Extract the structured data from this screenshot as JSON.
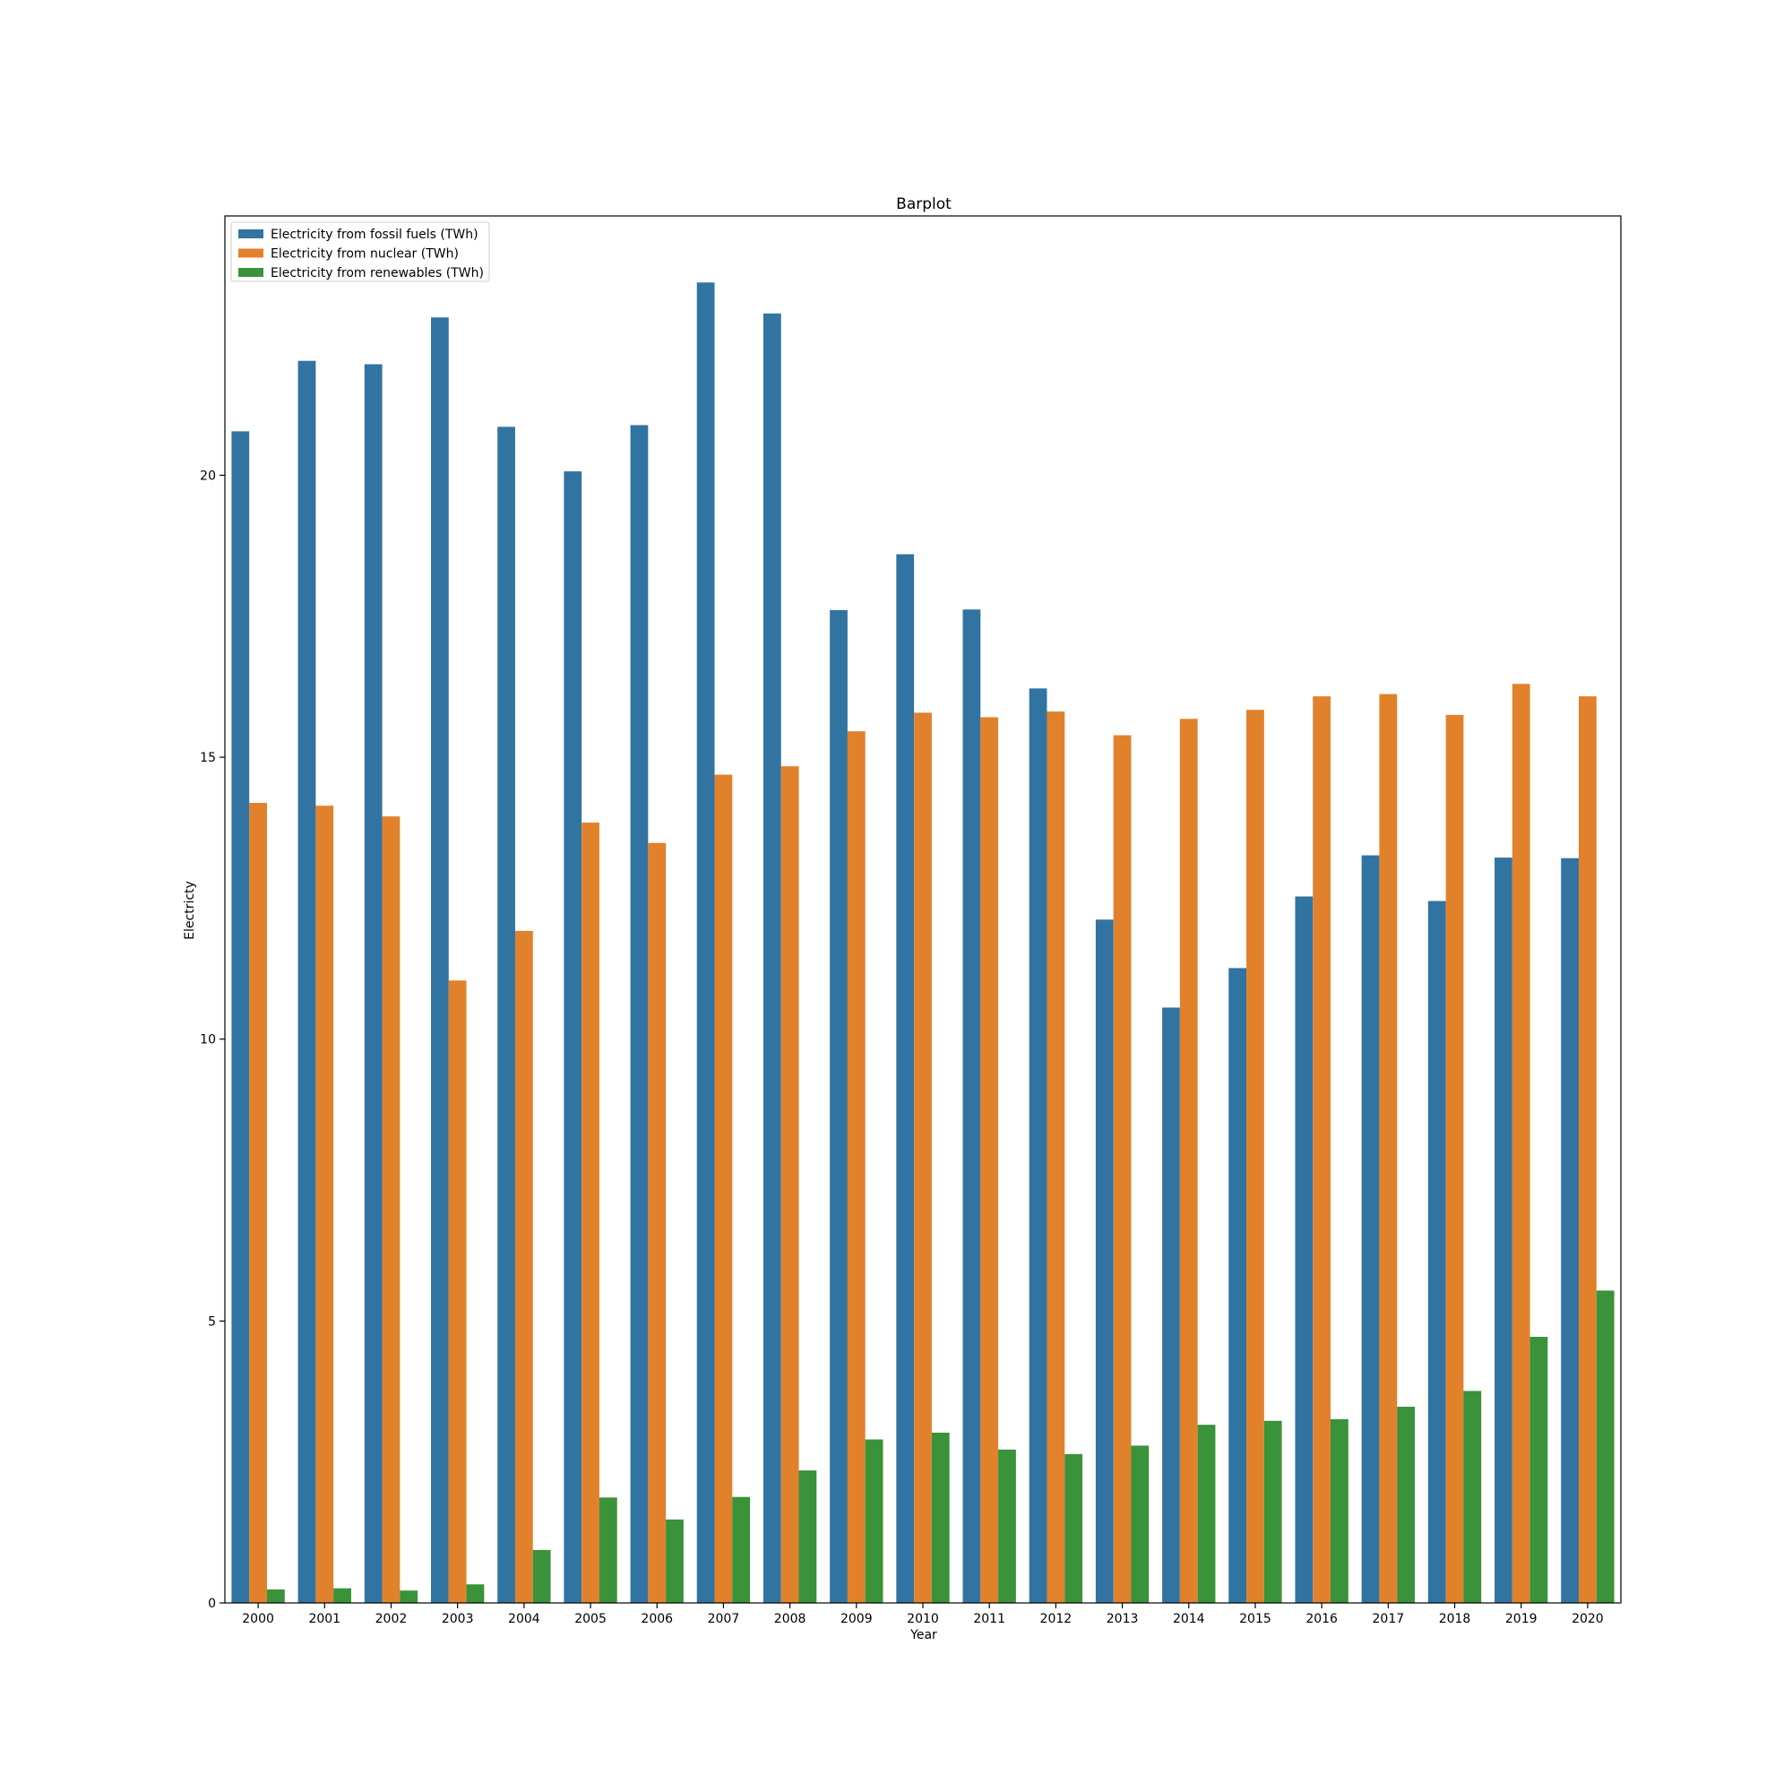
{
  "chart_data": {
    "type": "bar",
    "title": "Barplot",
    "xlabel": "Year",
    "ylabel": "Electricty",
    "ylim": [
      0,
      24.6
    ],
    "yticks": [
      0,
      5,
      10,
      15,
      20
    ],
    "categories": [
      "2000",
      "2001",
      "2002",
      "2003",
      "2004",
      "2005",
      "2006",
      "2007",
      "2008",
      "2009",
      "2010",
      "2011",
      "2012",
      "2013",
      "2014",
      "2015",
      "2016",
      "2017",
      "2018",
      "2019",
      "2020"
    ],
    "legend_position": "top-left",
    "grid": false,
    "series": [
      {
        "name": "Electricity from fossil fuels (TWh)",
        "color": "#3274a1",
        "values": [
          20.78,
          22.03,
          21.97,
          22.8,
          20.86,
          20.07,
          20.89,
          23.42,
          22.87,
          17.61,
          18.6,
          17.62,
          16.22,
          12.12,
          10.56,
          11.26,
          12.53,
          13.26,
          12.45,
          13.22,
          13.21
        ]
      },
      {
        "name": "Electricity from nuclear (TWh)",
        "color": "#e1812c",
        "values": [
          14.19,
          14.14,
          13.95,
          11.04,
          11.92,
          13.84,
          13.48,
          14.69,
          14.84,
          15.46,
          15.79,
          15.71,
          15.81,
          15.39,
          15.68,
          15.84,
          16.08,
          16.12,
          15.75,
          16.3,
          16.08
        ]
      },
      {
        "name": "Electricity from renewables (TWh)",
        "color": "#3a923a",
        "values": [
          0.24,
          0.26,
          0.22,
          0.33,
          0.94,
          1.87,
          1.48,
          1.88,
          2.35,
          2.9,
          3.02,
          2.72,
          2.64,
          2.79,
          3.16,
          3.23,
          3.26,
          3.48,
          3.76,
          4.72,
          5.54
        ]
      }
    ]
  }
}
